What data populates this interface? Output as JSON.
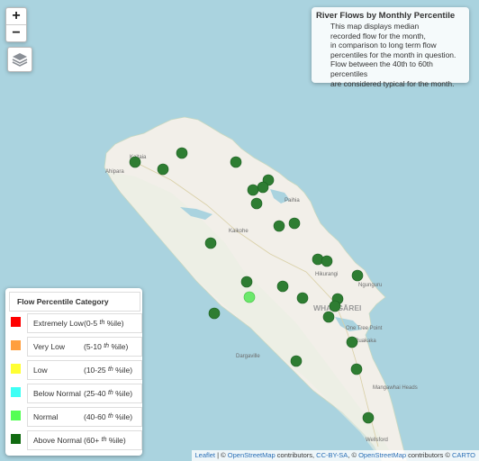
{
  "info": {
    "title": "River Flows by Monthly Percentile",
    "lines": [
      "This map displays median",
      "recorded flow for the month,",
      "in comparison to long term flow",
      "percentiles for the month in question.",
      "Flow between the 40th to 60th percentiles",
      "are considered typical for the month."
    ]
  },
  "zoom": {
    "in": "+",
    "out": "−"
  },
  "legend": {
    "title": "Flow Percentile Category",
    "items": [
      {
        "name": "Extremely Low",
        "range_start": "(0-5",
        "range_sup": "th",
        "range_end": "%ile)",
        "color": "#ff0000"
      },
      {
        "name": "Very Low",
        "range_start": "(5-10",
        "range_sup": "th",
        "range_end": "%ile)",
        "color": "#ff9f3f"
      },
      {
        "name": "Low",
        "range_start": "(10-25",
        "range_sup": "th",
        "range_end": "%ile)",
        "color": "#ffff33"
      },
      {
        "name": "Below Normal",
        "range_start": "(25-40",
        "range_sup": "th",
        "range_end": "%ile)",
        "color": "#3ffff5"
      },
      {
        "name": "Normal",
        "range_start": "(40-60",
        "range_sup": "th",
        "range_end": "%ile)",
        "color": "#55ff55"
      },
      {
        "name": "Above Normal",
        "range_start": "(60+",
        "range_sup": "th",
        "range_end": "%ile)",
        "color": "#116b11"
      }
    ]
  },
  "places": [
    "Kaitaia",
    "Ahipara",
    "Paihia",
    "Kaikohe",
    "Hikurangi",
    "Ngunguru",
    "WHANGĀREI",
    "One Tree Point",
    "Ruakaka",
    "Dargaville",
    "Mangawhai Heads",
    "Wellsford"
  ],
  "markers": {
    "above_normal_color": "#2e7d32",
    "normal_color": "#6be86b"
  },
  "attribution": {
    "leaflet": "Leaflet",
    "sep1": " | © ",
    "osm1": "OpenStreetMap",
    "t1": " contributors, ",
    "ccbysa": "CC-BY-SA",
    "t2": ", © ",
    "osm2": "OpenStreetMap",
    "t3": " contributors © ",
    "carto": "CARTO"
  }
}
